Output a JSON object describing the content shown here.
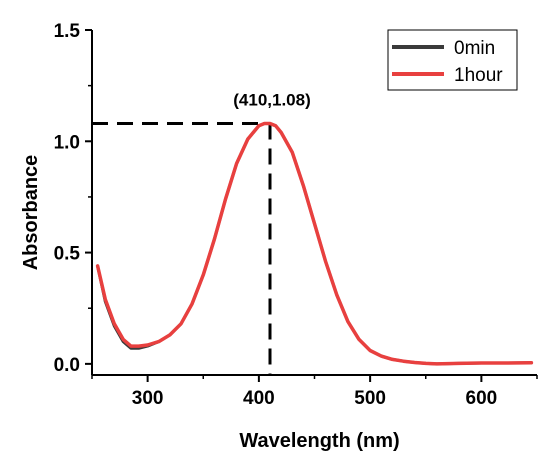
{
  "chart_data": {
    "type": "line",
    "xlabel": "Wavelength (nm)",
    "ylabel": "Absorbance",
    "xlim": [
      250,
      650
    ],
    "ylim": [
      -0.05,
      1.5
    ],
    "x_ticks": [
      300,
      400,
      500,
      600
    ],
    "y_ticks": [
      0.0,
      0.5,
      1.0,
      1.5
    ],
    "x_tick_labels": [
      "300",
      "400",
      "500",
      "600"
    ],
    "y_tick_labels": [
      "0.0",
      "0.5",
      "1.0",
      "1.5"
    ],
    "grid": false,
    "legend_position": "top-right",
    "series": [
      {
        "name": "0min",
        "color": "#3a3a3a",
        "x": [
          255,
          262,
          270,
          278,
          285,
          292,
          300,
          310,
          320,
          330,
          340,
          350,
          360,
          370,
          380,
          390,
          400,
          405,
          410,
          415,
          420,
          430,
          440,
          450,
          460,
          470,
          480,
          490,
          500,
          510,
          520,
          530,
          540,
          550,
          560,
          580,
          600,
          620,
          645
        ],
        "y": [
          0.44,
          0.28,
          0.17,
          0.1,
          0.07,
          0.07,
          0.08,
          0.1,
          0.13,
          0.18,
          0.27,
          0.4,
          0.56,
          0.74,
          0.9,
          1.01,
          1.07,
          1.08,
          1.08,
          1.07,
          1.04,
          0.95,
          0.8,
          0.63,
          0.46,
          0.31,
          0.19,
          0.11,
          0.06,
          0.035,
          0.02,
          0.012,
          0.006,
          0.002,
          0.0,
          0.002,
          0.004,
          0.004,
          0.005
        ]
      },
      {
        "name": "1hour",
        "color": "#e8403f",
        "x": [
          255,
          262,
          270,
          278,
          285,
          292,
          300,
          310,
          320,
          330,
          340,
          350,
          360,
          370,
          380,
          390,
          400,
          405,
          410,
          415,
          420,
          430,
          440,
          450,
          460,
          470,
          480,
          490,
          500,
          510,
          520,
          530,
          540,
          550,
          560,
          580,
          600,
          620,
          645
        ],
        "y": [
          0.44,
          0.29,
          0.18,
          0.11,
          0.08,
          0.08,
          0.085,
          0.1,
          0.13,
          0.18,
          0.27,
          0.4,
          0.56,
          0.74,
          0.9,
          1.01,
          1.07,
          1.08,
          1.08,
          1.07,
          1.04,
          0.95,
          0.8,
          0.63,
          0.46,
          0.31,
          0.19,
          0.11,
          0.06,
          0.035,
          0.02,
          0.012,
          0.006,
          0.002,
          0.0,
          0.002,
          0.004,
          0.004,
          0.005
        ]
      }
    ],
    "annotation": {
      "text": "(410,1.08)",
      "x": 410,
      "y": 1.08
    }
  }
}
